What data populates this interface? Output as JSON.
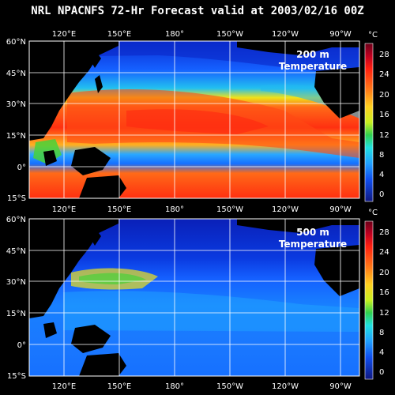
{
  "title": "NRL NPACNFS 72-Hr Forecast valid at 2003/02/16 00Z",
  "lon_labels": [
    "120°E",
    "150°E",
    "180°",
    "150°W",
    "120°W",
    "90°W"
  ],
  "lat_labels": [
    "60°N",
    "45°N",
    "30°N",
    "15°N",
    "0°",
    "15°S"
  ],
  "colorbar": {
    "unit": "°C",
    "ticks": [
      "28",
      "24",
      "20",
      "16",
      "12",
      "8",
      "4",
      "0"
    ]
  },
  "panels": [
    {
      "depth_label": "200 m",
      "variable_label": "Temperature"
    },
    {
      "depth_label": "500 m",
      "variable_label": "Temperature"
    }
  ],
  "colors": {
    "ocean_deep": "#0a2bd0",
    "ocean_mid": "#1570ff",
    "ocean_light": "#2aa8ff",
    "warm_yellow": "#f0e21a",
    "warm_orange": "#ff7a18",
    "warm_red": "#ff2a10",
    "green": "#48d23a",
    "land": "#000000",
    "grid": "#ffffff"
  }
}
